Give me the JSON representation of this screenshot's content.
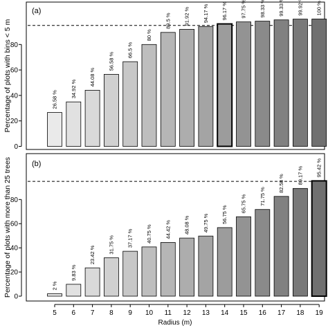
{
  "chart_data": [
    {
      "type": "bar",
      "panel_label": "(a)",
      "ylabel": "Percentage of plots with bins < 5 m",
      "xlabel": "",
      "categories": [
        "5",
        "6",
        "7",
        "8",
        "9",
        "10",
        "11",
        "12",
        "13",
        "14",
        "15",
        "16",
        "17",
        "18",
        "19"
      ],
      "values": [
        26.58,
        34.92,
        44.08,
        56.58,
        66.5,
        80,
        89.5,
        91.92,
        94.17,
        96.17,
        97.75,
        98.33,
        99.33,
        99.92,
        100
      ],
      "value_labels": [
        "26.58 %",
        "34.92 %",
        "44.08 %",
        "56.58 %",
        "66.5 %",
        "80 %",
        "89.5 %",
        "91.92 %",
        "94.17 %",
        "96.17 %",
        "97.75 %",
        "98.33 %",
        "99.33 %",
        "99.92 %",
        "100 %"
      ],
      "highlight_category": "14",
      "reference_line": 95,
      "ylim": [
        0,
        112
      ],
      "yticks": [
        0,
        20,
        40,
        60,
        80
      ]
    },
    {
      "type": "bar",
      "panel_label": "(b)",
      "ylabel": "Percentage of plots with more than 25 trees",
      "xlabel": "Radius (m)",
      "categories": [
        "5",
        "6",
        "7",
        "8",
        "9",
        "10",
        "11",
        "12",
        "13",
        "14",
        "15",
        "16",
        "17",
        "18",
        "19"
      ],
      "values": [
        2,
        9.83,
        23.42,
        31.75,
        37.17,
        40.75,
        44.42,
        48.08,
        49.75,
        56.75,
        65.75,
        71.75,
        82.58,
        89.17,
        95.42
      ],
      "value_labels": [
        "2 %",
        "9.83 %",
        "23.42 %",
        "31.75 %",
        "37.17 %",
        "40.75 %",
        "44.42 %",
        "48.08 %",
        "49.75 %",
        "56.75 %",
        "65.75 %",
        "71.75 %",
        "82.58 %",
        "89.17 %",
        "95.42 %"
      ],
      "highlight_category": "19",
      "reference_line": 95,
      "ylim": [
        0,
        112
      ],
      "yticks": [
        0,
        20,
        40,
        60,
        80
      ]
    }
  ]
}
